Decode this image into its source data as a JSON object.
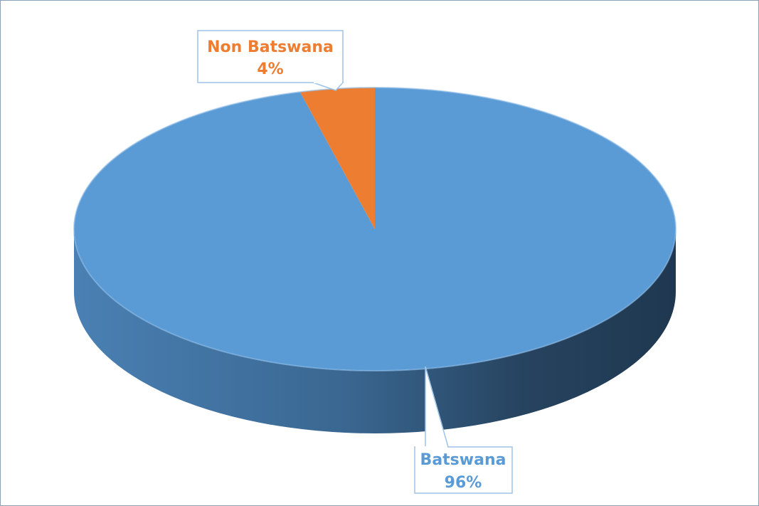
{
  "chart_data": {
    "type": "pie",
    "categories": [
      "Batswana",
      "Non Batswana"
    ],
    "values": [
      96,
      4
    ],
    "value_labels": [
      "96%",
      "4%"
    ],
    "colors": [
      "#5b9bd5",
      "#ed7d31"
    ]
  }
}
